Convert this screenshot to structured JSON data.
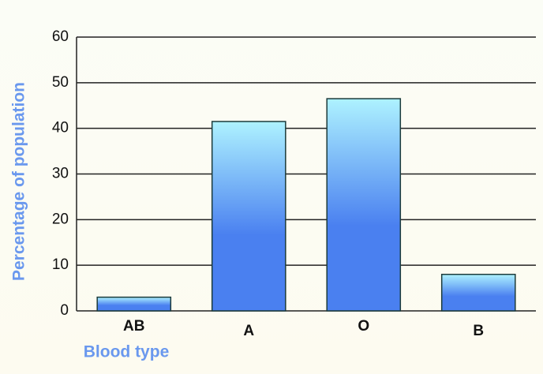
{
  "chart_data": {
    "type": "bar",
    "x_label": "Blood type",
    "y_label": "Percentage of population",
    "categories": [
      "AB",
      "A",
      "O",
      "B"
    ],
    "values": [
      3,
      41.5,
      46.5,
      8
    ],
    "colors": [
      "#aef2ff",
      "#4a80f0"
    ],
    "ylim": [
      0,
      60
    ],
    "yticks": [
      0,
      10,
      20,
      30,
      40,
      50,
      60
    ],
    "grid": true
  }
}
